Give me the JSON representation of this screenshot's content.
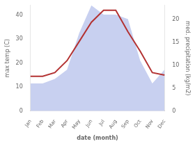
{
  "chart_data": {
    "type": "line",
    "categories": [
      "Jan",
      "Feb",
      "Mar",
      "Apr",
      "May",
      "Jun",
      "Jul",
      "Aug",
      "Sep",
      "Oct",
      "Nov",
      "Dec"
    ],
    "xlabel": "date (month)",
    "ylabel": "max temp (C)",
    "y2label": "med. precipitation (kg/m2)",
    "series": [
      {
        "type": "line",
        "color": "#b33232",
        "values": [
          14.5,
          14.5,
          16,
          21,
          29,
          37,
          42,
          42,
          33,
          25,
          16,
          15
        ]
      },
      {
        "type": "area",
        "color": "#c8d0f0",
        "axis": "y2",
        "values": [
          6,
          6,
          7,
          9,
          17,
          23,
          21,
          21,
          20,
          11,
          6,
          9
        ]
      }
    ],
    "ylim": [
      0,
      44
    ],
    "yticks": [
      0,
      10,
      20,
      30,
      40
    ],
    "y2lim": [
      0,
      23
    ],
    "y2ticks": [
      0,
      5,
      10,
      15,
      20
    ],
    "grid": false
  }
}
